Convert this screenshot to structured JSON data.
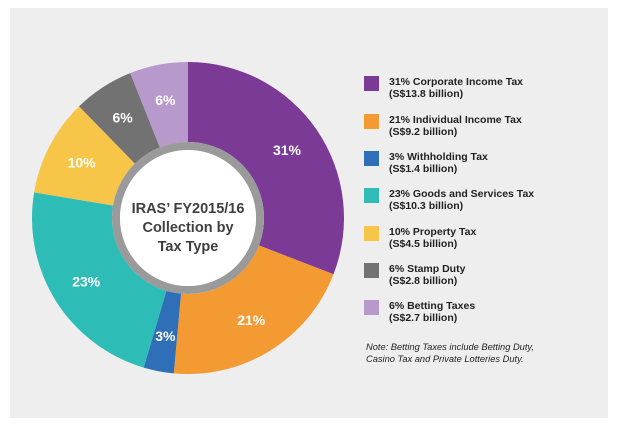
{
  "chart_data": {
    "type": "pie",
    "center_label": [
      "IRAS’ FY2015/16",
      "Collection by",
      "Tax Type"
    ],
    "slices": [
      {
        "percent_label": "31%",
        "value": 13.8,
        "name": "31% Corporate Income Tax",
        "amount": "(S$13.8 billion)",
        "color": "#7b3a96"
      },
      {
        "percent_label": "21%",
        "value": 9.2,
        "name": "21% Individual Income Tax",
        "amount": "(S$9.2 billion)",
        "color": "#f49a32"
      },
      {
        "percent_label": "3%",
        "value": 1.4,
        "name": "3% Withholding Tax",
        "amount": "(S$1.4 billion)",
        "color": "#2e6fb7"
      },
      {
        "percent_label": "23%",
        "value": 10.3,
        "name": "23% Goods and Services Tax",
        "amount": "(S$10.3 billion)",
        "color": "#2ebdb6"
      },
      {
        "percent_label": "10%",
        "value": 4.5,
        "name": "10% Property Tax",
        "amount": "(S$4.5 billion)",
        "color": "#f7c547"
      },
      {
        "percent_label": "6%",
        "value": 2.8,
        "name": "6% Stamp Duty",
        "amount": "(S$2.8 billion)",
        "color": "#727272"
      },
      {
        "percent_label": "6%",
        "value": 2.7,
        "name": "6% Betting Taxes",
        "amount": "(S$2.7 billion)",
        "color": "#b799cc"
      }
    ],
    "legend_position": "right",
    "note": [
      "Note: Betting Taxes include Betting Duty,",
      "Casino Tax and Private Lotteries Duty."
    ]
  }
}
